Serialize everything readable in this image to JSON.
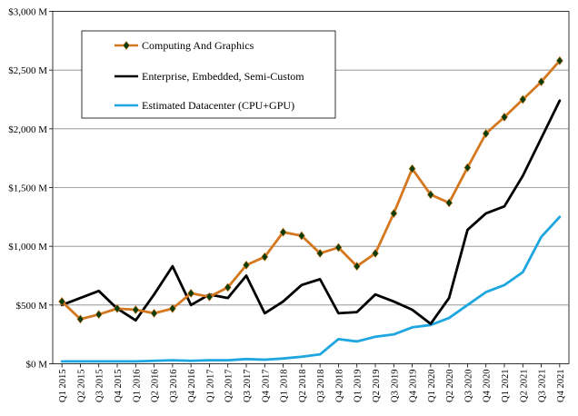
{
  "chart_data": {
    "type": "line",
    "title": "",
    "xlabel": "",
    "ylabel": "",
    "ylim": [
      0,
      3000
    ],
    "y_ticks": [
      {
        "value": 0,
        "label": "$0 M"
      },
      {
        "value": 500,
        "label": "$500 M"
      },
      {
        "value": 1000,
        "label": "$1,000 M"
      },
      {
        "value": 1500,
        "label": "$1,500 M"
      },
      {
        "value": 2000,
        "label": "$2,000 M"
      },
      {
        "value": 2500,
        "label": "$2,500 M"
      },
      {
        "value": 3000,
        "label": "$3,000 M"
      }
    ],
    "grid": "horizontal",
    "legend_position": "top-left",
    "categories": [
      "Q1 2015",
      "Q2 2015",
      "Q3 2015",
      "Q4 2015",
      "Q1 2016",
      "Q2 2016",
      "Q3 2016",
      "Q4 2016",
      "Q1 2017",
      "Q2 2017",
      "Q3 2017",
      "Q4 2017",
      "Q1 2018",
      "Q2 2018",
      "Q3 2018",
      "Q4 2018",
      "Q1 2019",
      "Q2 2019",
      "Q3 2019",
      "Q4 2019",
      "Q1 2020",
      "Q2 2020",
      "Q3 2020",
      "Q4 2020",
      "Q1 2021",
      "Q2 2021",
      "Q3 2021",
      "Q4 2021"
    ],
    "series": [
      {
        "name": "Computing And Graphics",
        "color": "#d4771f",
        "marker_color": "#0a3d0a",
        "marker": "diamond",
        "values": [
          530,
          380,
          420,
          470,
          460,
          430,
          470,
          600,
          570,
          650,
          840,
          910,
          1120,
          1090,
          940,
          990,
          830,
          940,
          1280,
          1660,
          1440,
          1370,
          1670,
          1960,
          2100,
          2250,
          2400,
          2580
        ]
      },
      {
        "name": "Enterprise, Embedded, Semi-Custom",
        "color": "#000000",
        "values": [
          500,
          560,
          620,
          470,
          370,
          590,
          830,
          500,
          590,
          560,
          750,
          430,
          530,
          670,
          720,
          430,
          440,
          590,
          530,
          460,
          340,
          560,
          1140,
          1280,
          1340,
          1600,
          1920,
          2240
        ]
      },
      {
        "name": "Estimated Datacenter (CPU+GPU)",
        "color": "#1ea6e0",
        "values": [
          20,
          20,
          20,
          20,
          20,
          25,
          30,
          25,
          30,
          30,
          40,
          35,
          45,
          60,
          80,
          210,
          190,
          230,
          250,
          310,
          330,
          390,
          500,
          610,
          670,
          780,
          1080,
          1250
        ]
      }
    ]
  }
}
